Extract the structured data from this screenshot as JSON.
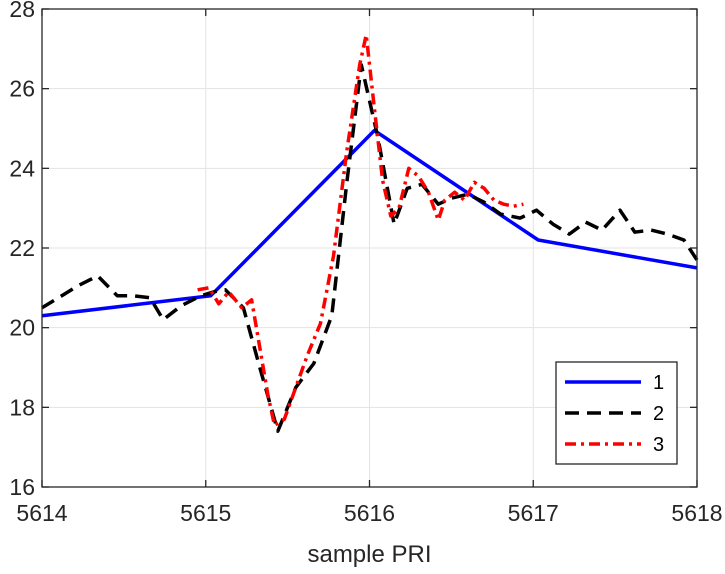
{
  "chart_data": {
    "type": "line",
    "title": "",
    "xlabel": "sample PRI",
    "ylabel": "",
    "xlim": [
      5614,
      5618
    ],
    "ylim": [
      16,
      28
    ],
    "xticks": [
      5614,
      5615,
      5616,
      5617,
      5618
    ],
    "yticks": [
      16,
      18,
      20,
      22,
      24,
      26,
      28
    ],
    "grid": true,
    "legend": {
      "placement": "bottom-right"
    },
    "colors": {
      "1": "#0000ff",
      "2": "#000000",
      "3": "#ff0000",
      "grid": "#e3e3e3",
      "axes": "#262626"
    },
    "series": [
      {
        "name": "1",
        "style": "solid",
        "color": "#0000ff",
        "x": [
          5614,
          5615.03,
          5616.03,
          5617.03,
          5618
        ],
        "y": [
          20.3,
          20.8,
          24.95,
          22.2,
          21.5
        ]
      },
      {
        "name": "2",
        "style": "dashed",
        "color": "#000000",
        "x": [
          5614,
          5614.1,
          5614.22,
          5614.34,
          5614.46,
          5614.56,
          5614.66,
          5614.74,
          5614.85,
          5614.97,
          5615.05,
          5615.12,
          5615.23,
          5615.33,
          5615.44,
          5615.55,
          5615.66,
          5615.77,
          5615.86,
          5615.95,
          5616.05,
          5616.15,
          5616.23,
          5616.32,
          5616.42,
          5616.5,
          5616.6,
          5616.7,
          5616.8,
          5616.92,
          5617.02,
          5617.12,
          5617.22,
          5617.32,
          5617.42,
          5617.53,
          5617.62,
          5617.72,
          5617.82,
          5617.92,
          5618
        ],
        "y": [
          20.5,
          20.75,
          21.05,
          21.3,
          20.8,
          20.8,
          20.75,
          20.2,
          20.55,
          20.8,
          20.9,
          20.95,
          20.5,
          19.0,
          17.4,
          18.5,
          19.1,
          20.3,
          23.6,
          26.6,
          24.8,
          22.6,
          23.5,
          23.6,
          23.1,
          23.25,
          23.35,
          23.15,
          22.85,
          22.75,
          22.95,
          22.6,
          22.35,
          22.65,
          22.45,
          22.95,
          22.4,
          22.45,
          22.35,
          22.2,
          21.7
        ]
      },
      {
        "name": "3",
        "style": "dashdot",
        "color": "#ff0000",
        "x": [
          5614.95,
          5615.02,
          5615.08,
          5615.14,
          5615.22,
          5615.28,
          5615.33,
          5615.38,
          5615.42,
          5615.48,
          5615.55,
          5615.62,
          5615.7,
          5615.78,
          5615.86,
          5615.94,
          5615.98,
          5616.03,
          5616.08,
          5616.13,
          5616.18,
          5616.24,
          5616.3,
          5616.36,
          5616.42,
          5616.46,
          5616.52,
          5616.58,
          5616.64,
          5616.7,
          5616.76,
          5616.82,
          5616.88,
          5616.94
        ],
        "y": [
          20.95,
          21.0,
          20.6,
          20.9,
          20.5,
          20.7,
          19.5,
          18.3,
          17.55,
          17.7,
          18.5,
          19.3,
          20.1,
          21.8,
          24.4,
          26.6,
          27.35,
          25.5,
          23.7,
          22.8,
          23.0,
          24.0,
          23.8,
          23.4,
          22.7,
          23.2,
          23.4,
          23.2,
          23.65,
          23.5,
          23.2,
          23.1,
          23.05,
          23.1
        ]
      }
    ]
  }
}
